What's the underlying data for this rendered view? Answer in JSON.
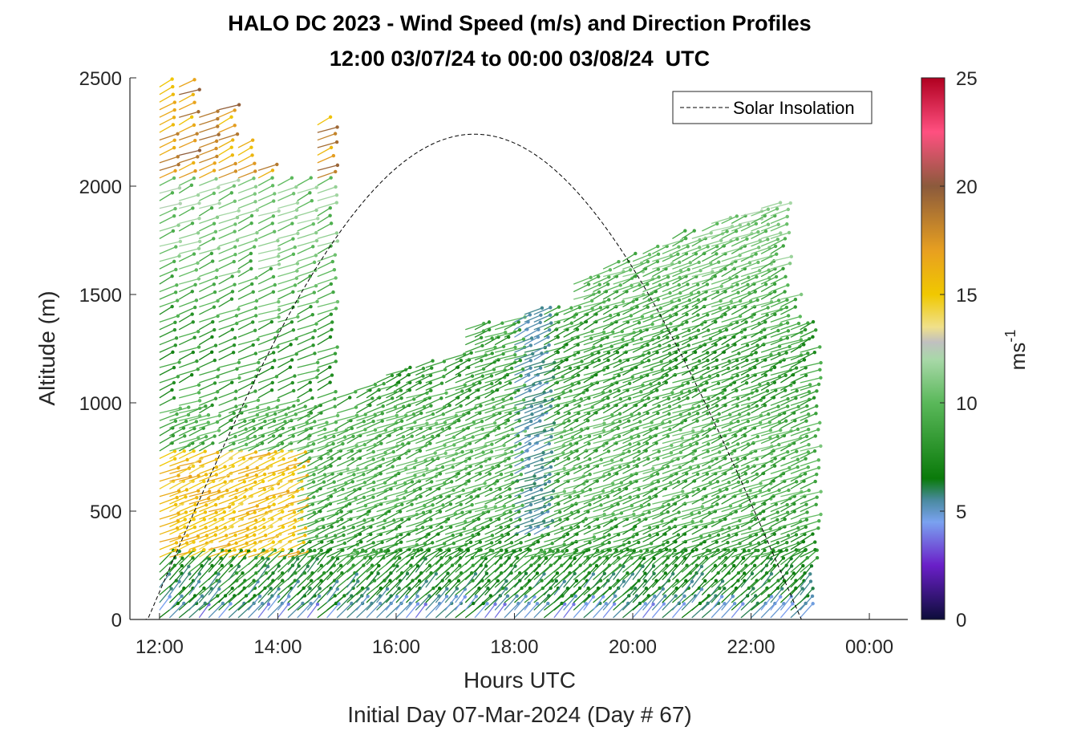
{
  "chart_data": {
    "type": "vector-field",
    "title": "HALO DC 2023 - Wind Speed (m/s) and Direction Profiles",
    "subtitle": "12:00 03/07/24 to 00:00 03/08/24  UTC",
    "xlabel": "Hours UTC",
    "xlabel2": "Initial Day 07-Mar-2024 (Day # 67)",
    "ylabel": "Altitude (m)",
    "xlim": [
      11.5,
      24.65
    ],
    "ylim": [
      0,
      2500
    ],
    "x_ticks": [
      {
        "value": 12,
        "label": "12:00"
      },
      {
        "value": 14,
        "label": "14:00"
      },
      {
        "value": 16,
        "label": "16:00"
      },
      {
        "value": 18,
        "label": "18:00"
      },
      {
        "value": 20,
        "label": "20:00"
      },
      {
        "value": 22,
        "label": "22:00"
      },
      {
        "value": 24,
        "label": "00:00"
      }
    ],
    "y_ticks": [
      {
        "value": 0,
        "label": "0"
      },
      {
        "value": 500,
        "label": "500"
      },
      {
        "value": 1000,
        "label": "1000"
      },
      {
        "value": 1500,
        "label": "1500"
      },
      {
        "value": 2000,
        "label": "2000"
      },
      {
        "value": 2500,
        "label": "2500"
      }
    ],
    "colorbar": {
      "label": "ms-1",
      "range": [
        0,
        25
      ],
      "ticks": [
        {
          "value": 0,
          "label": "0"
        },
        {
          "value": 5,
          "label": "5"
        },
        {
          "value": 10,
          "label": "10"
        },
        {
          "value": 15,
          "label": "15"
        },
        {
          "value": 20,
          "label": "20"
        },
        {
          "value": 25,
          "label": "25"
        }
      ],
      "stops": [
        {
          "v": 0,
          "c": "#0d0d3a"
        },
        {
          "v": 2.5,
          "c": "#6a1fc8"
        },
        {
          "v": 4.5,
          "c": "#7aa2f0"
        },
        {
          "v": 5.5,
          "c": "#4a8aa0"
        },
        {
          "v": 6.5,
          "c": "#0a7a0a"
        },
        {
          "v": 10,
          "c": "#5ab85a"
        },
        {
          "v": 12,
          "c": "#a8d8a8"
        },
        {
          "v": 12.8,
          "c": "#c0c0c0"
        },
        {
          "v": 13.5,
          "c": "#f0e08a"
        },
        {
          "v": 15,
          "c": "#f0c800"
        },
        {
          "v": 17,
          "c": "#e8a020"
        },
        {
          "v": 20,
          "c": "#8b5a3c"
        },
        {
          "v": 22.5,
          "c": "#ff5080"
        },
        {
          "v": 25,
          "c": "#b00020"
        }
      ]
    },
    "legend": {
      "entries": [
        "Solar Insolation"
      ],
      "placement": "top-right"
    },
    "insolation": {
      "start_hour": 11.8,
      "end_hour": 22.85,
      "peak_hour": 17.33,
      "peak_altitude": 2240
    },
    "profile_hours": [
      12.0,
      12.17,
      12.33,
      12.5,
      12.67,
      12.83,
      13.0,
      13.17,
      13.33,
      13.5,
      13.67,
      13.83,
      14.0,
      14.17,
      14.33,
      14.5,
      14.67,
      14.83,
      15.0,
      15.17,
      15.33,
      15.5,
      15.67,
      15.83,
      16.0,
      16.17,
      16.33,
      16.5,
      16.67,
      16.83,
      17.0,
      17.17,
      17.33,
      17.5,
      17.67,
      17.83,
      18.0,
      18.17,
      18.33,
      18.5,
      18.67,
      18.83,
      19.0,
      19.17,
      19.33,
      19.5,
      19.67,
      19.83,
      20.0,
      20.17,
      20.33,
      20.5,
      20.67,
      20.83,
      21.0,
      21.17,
      21.33,
      21.5,
      21.67,
      21.83,
      22.0,
      22.17,
      22.33,
      22.5,
      22.67,
      22.83
    ],
    "profile_tops": [
      2480,
      1500,
      2480,
      1530,
      2350,
      700,
      2400,
      1500,
      2230,
      1300,
      2120,
      1800,
      2050,
      1650,
      2050,
      1500,
      2320,
      900,
      1050,
      950,
      1080,
      1100,
      1120,
      1150,
      1150,
      1170,
      1200,
      1200,
      1000,
      1220,
      1250,
      1380,
      1380,
      1380,
      1380,
      1400,
      1420,
      1430,
      1450,
      1440,
      1450,
      1460,
      1580,
      1600,
      1620,
      1640,
      1650,
      1680,
      1700,
      1720,
      1740,
      1760,
      1780,
      1800,
      1800,
      1820,
      1850,
      1860,
      1880,
      1900,
      1900,
      1920,
      1920,
      1520,
      1380,
      1380
    ],
    "gap_bands": [
      [
        990,
        1880
      ],
      [
        800,
        1450
      ]
    ],
    "speed_profile": [
      {
        "alt": 0,
        "speed": 4.5
      },
      {
        "alt": 100,
        "speed": 6.5
      },
      {
        "alt": 250,
        "speed": 7.5
      },
      {
        "alt": 500,
        "speed": 9
      },
      {
        "alt": 800,
        "speed": 9.5
      },
      {
        "alt": 1200,
        "speed": 8
      },
      {
        "alt": 1600,
        "speed": 10
      },
      {
        "alt": 2000,
        "speed": 11
      }
    ]
  }
}
